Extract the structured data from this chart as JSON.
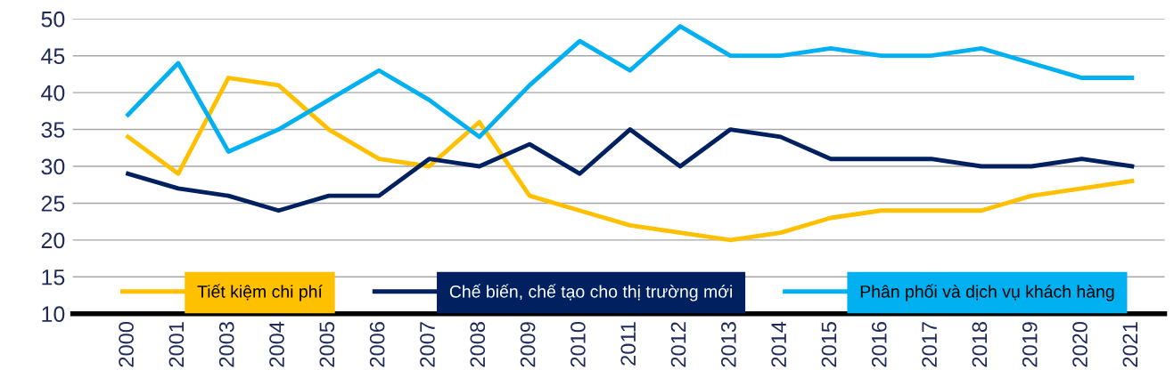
{
  "chart_data": {
    "type": "line",
    "categories": [
      "2000",
      "2001",
      "2003",
      "2004",
      "2005",
      "2006",
      "2007",
      "2008",
      "2009",
      "2010",
      "2011",
      "2012",
      "2013",
      "2014",
      "2015",
      "2016",
      "2017",
      "2018",
      "2019",
      "2020",
      "2021"
    ],
    "series": [
      {
        "name": "Tiết kiệm chi phí",
        "color": "#ffc000",
        "values": [
          34,
          29,
          42,
          41,
          35,
          31,
          30,
          36,
          26,
          24,
          22,
          21,
          20,
          21,
          23,
          24,
          24,
          24,
          26,
          27,
          28
        ]
      },
      {
        "name": "Chế biến, chế tạo cho thị trường mới",
        "color": "#002060",
        "values": [
          29,
          27,
          26,
          24,
          26,
          26,
          31,
          30,
          33,
          29,
          35,
          30,
          35,
          34,
          31,
          31,
          31,
          30,
          30,
          31,
          30
        ]
      },
      {
        "name": "Phân phối và dịch vụ khách hàng",
        "color": "#00b0f0",
        "values": [
          37,
          44,
          32,
          35,
          39,
          43,
          39,
          34,
          41,
          47,
          43,
          49,
          45,
          45,
          46,
          45,
          45,
          46,
          44,
          42,
          42
        ]
      }
    ],
    "ylim": [
      10,
      50
    ],
    "yticks": [
      10,
      15,
      20,
      25,
      30,
      35,
      40,
      45,
      50
    ],
    "grid": "y",
    "legend": "bottom",
    "marker": "none",
    "line_style": "solid"
  }
}
